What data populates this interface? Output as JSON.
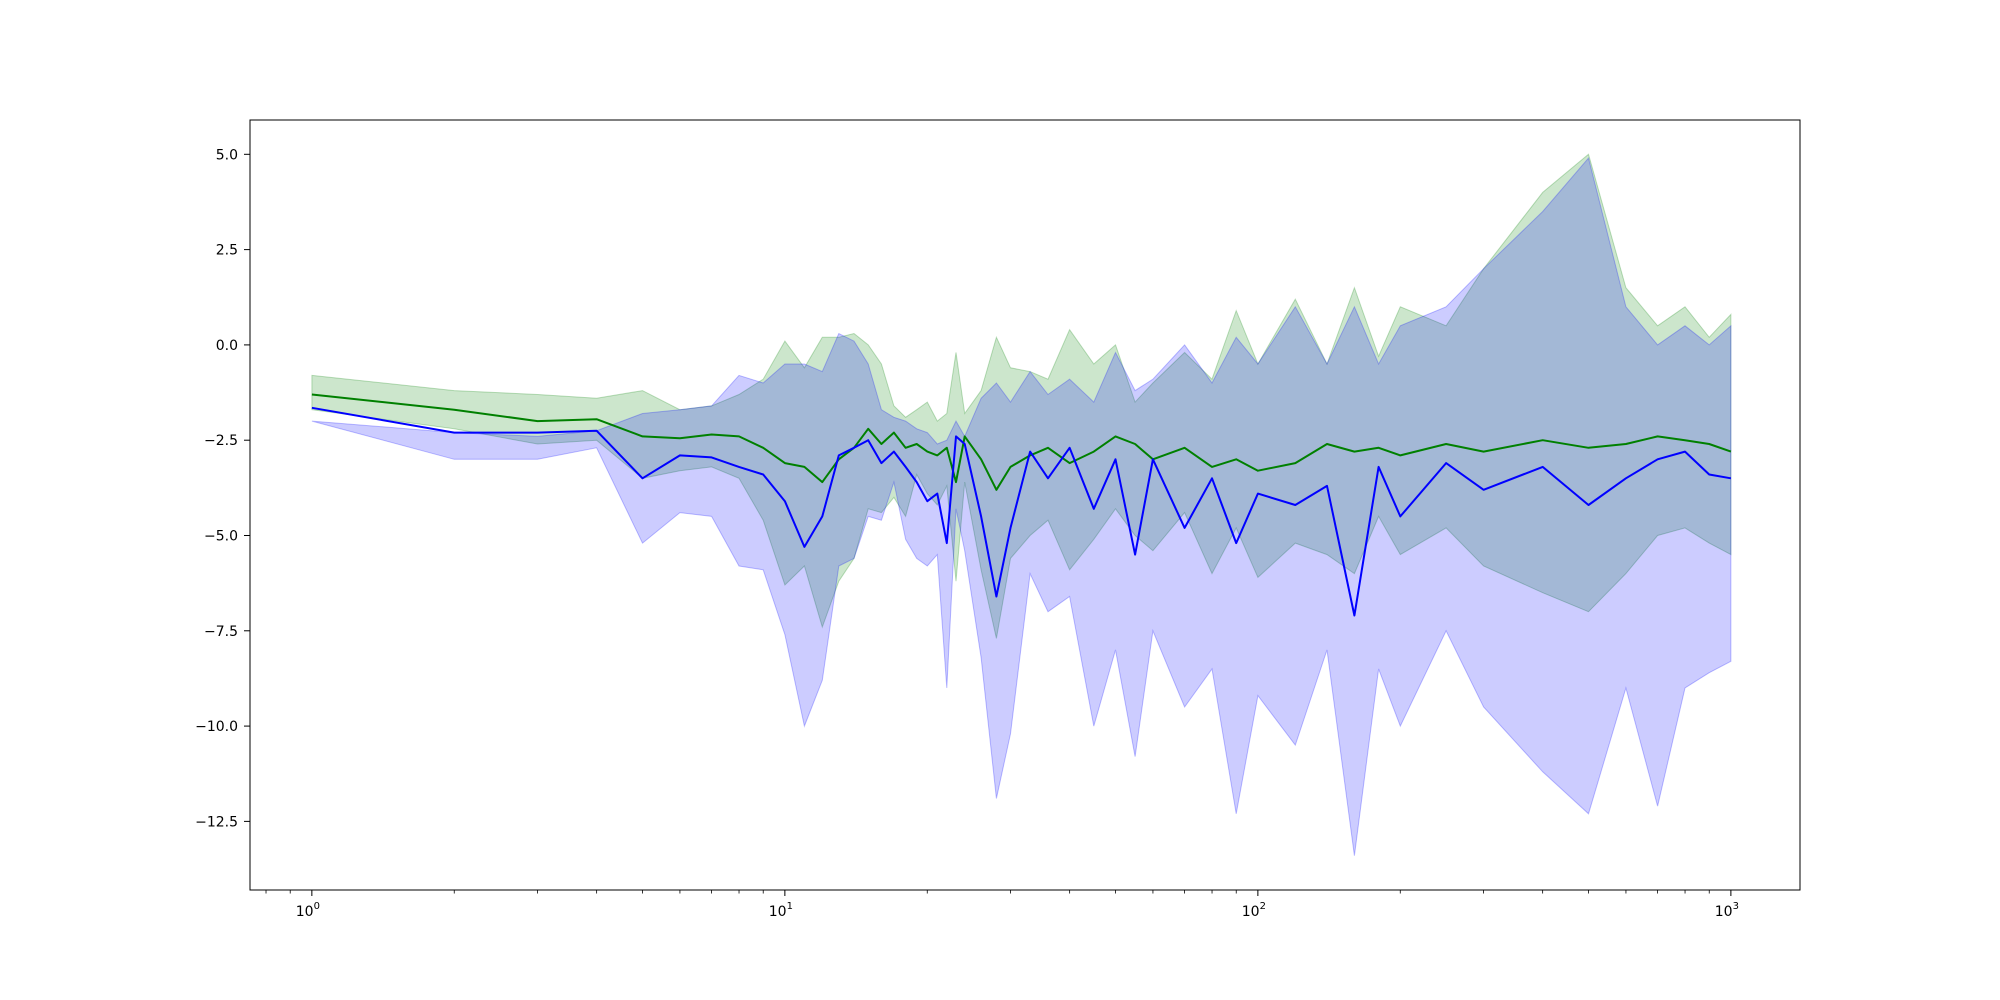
{
  "chart_data": {
    "type": "line",
    "title": "",
    "xlabel": "",
    "ylabel": "",
    "xscale": "log",
    "xlim": [
      0.74,
      1400
    ],
    "ylim": [
      -14.3,
      5.9
    ],
    "grid": false,
    "legend": "none",
    "x_ticks": [
      {
        "value": 1,
        "base": "10",
        "exp": "0"
      },
      {
        "value": 10,
        "base": "10",
        "exp": "1"
      },
      {
        "value": 100,
        "base": "10",
        "exp": "2"
      },
      {
        "value": 1000,
        "base": "10",
        "exp": "3"
      }
    ],
    "y_ticks": [
      {
        "value": 5.0,
        "label": "5.0"
      },
      {
        "value": 2.5,
        "label": "2.5"
      },
      {
        "value": 0.0,
        "label": "0.0"
      },
      {
        "value": -2.5,
        "label": "−2.5"
      },
      {
        "value": -5.0,
        "label": "−5.0"
      },
      {
        "value": -7.5,
        "label": "−7.5"
      },
      {
        "value": -10.0,
        "label": "−10.0"
      },
      {
        "value": -12.5,
        "label": "−12.5"
      }
    ],
    "series": [
      {
        "color": "#008000",
        "band_color": "#008000",
        "band_opacity": 0.2,
        "x": [
          1,
          2,
          3,
          4,
          5,
          6,
          7,
          8,
          9,
          10,
          11,
          12,
          13,
          14,
          15,
          16,
          17,
          18,
          19,
          20,
          21,
          22,
          23,
          24,
          26,
          28,
          30,
          33,
          36,
          40,
          45,
          50,
          55,
          60,
          70,
          80,
          90,
          100,
          120,
          140,
          160,
          180,
          200,
          250,
          300,
          400,
          500,
          600,
          700,
          800,
          900,
          1000
        ],
        "mean": [
          -1.3,
          -1.7,
          -2.0,
          -1.95,
          -2.4,
          -2.45,
          -2.35,
          -2.4,
          -2.7,
          -3.1,
          -3.2,
          -3.6,
          -3.0,
          -2.7,
          -2.2,
          -2.6,
          -2.3,
          -2.7,
          -2.6,
          -2.8,
          -2.9,
          -2.7,
          -3.6,
          -2.4,
          -3.0,
          -3.8,
          -3.2,
          -2.9,
          -2.7,
          -3.1,
          -2.8,
          -2.4,
          -2.6,
          -3.0,
          -2.7,
          -3.2,
          -3.0,
          -3.3,
          -3.1,
          -2.6,
          -2.8,
          -2.7,
          -2.9,
          -2.6,
          -2.8,
          -2.5,
          -2.7,
          -2.6,
          -2.4,
          -2.5,
          -2.6,
          -2.8
        ],
        "upper": [
          -0.8,
          -1.2,
          -1.3,
          -1.4,
          -1.2,
          -1.7,
          -1.6,
          -1.3,
          -0.9,
          0.1,
          -0.6,
          0.2,
          0.2,
          0.3,
          0.0,
          -0.5,
          -1.6,
          -1.9,
          -1.7,
          -1.5,
          -2.0,
          -1.8,
          -0.2,
          -1.8,
          -1.2,
          0.2,
          -0.6,
          -0.7,
          -0.9,
          0.4,
          -0.5,
          0.0,
          -1.5,
          -1.0,
          -0.2,
          -0.9,
          0.9,
          -0.5,
          1.2,
          -0.5,
          1.5,
          -0.3,
          1.0,
          0.5,
          2.0,
          4.0,
          5.0,
          1.5,
          0.5,
          1.0,
          0.2,
          0.8
        ],
        "lower": [
          -1.7,
          -2.2,
          -2.6,
          -2.5,
          -3.5,
          -3.3,
          -3.2,
          -3.5,
          -4.6,
          -6.3,
          -5.8,
          -7.4,
          -6.2,
          -5.6,
          -4.3,
          -4.4,
          -4.0,
          -4.5,
          -3.4,
          -3.9,
          -4.2,
          -3.7,
          -6.2,
          -3.6,
          -5.9,
          -7.7,
          -5.6,
          -5.0,
          -4.6,
          -5.9,
          -5.1,
          -4.3,
          -5.0,
          -5.4,
          -4.4,
          -6.0,
          -4.8,
          -6.1,
          -5.2,
          -5.5,
          -6.0,
          -4.5,
          -5.5,
          -4.8,
          -5.8,
          -6.5,
          -7.0,
          -6.0,
          -5.0,
          -4.8,
          -5.2,
          -5.5
        ]
      },
      {
        "color": "#0000ff",
        "band_color": "#0000ff",
        "band_opacity": 0.2,
        "x": [
          1,
          2,
          3,
          4,
          5,
          6,
          7,
          8,
          9,
          10,
          11,
          12,
          13,
          14,
          15,
          16,
          17,
          18,
          19,
          20,
          21,
          22,
          23,
          24,
          26,
          28,
          30,
          33,
          36,
          40,
          45,
          50,
          55,
          60,
          70,
          80,
          90,
          100,
          120,
          140,
          160,
          180,
          200,
          250,
          300,
          400,
          500,
          600,
          700,
          800,
          900,
          1000
        ],
        "mean": [
          -1.65,
          -2.3,
          -2.3,
          -2.25,
          -3.5,
          -2.9,
          -2.95,
          -3.2,
          -3.4,
          -4.1,
          -5.3,
          -4.5,
          -2.9,
          -2.7,
          -2.5,
          -3.1,
          -2.8,
          -3.2,
          -3.6,
          -4.1,
          -3.9,
          -5.2,
          -2.4,
          -2.6,
          -4.5,
          -6.6,
          -4.8,
          -2.8,
          -3.5,
          -2.7,
          -4.3,
          -3.0,
          -5.5,
          -3.0,
          -4.8,
          -3.5,
          -5.2,
          -3.9,
          -4.2,
          -3.7,
          -7.1,
          -3.2,
          -4.5,
          -3.1,
          -3.8,
          -3.2,
          -4.2,
          -3.5,
          -3.0,
          -2.8,
          -3.4,
          -3.5
        ],
        "upper": [
          -2.0,
          -2.3,
          -2.4,
          -2.25,
          -1.8,
          -1.7,
          -1.6,
          -0.8,
          -1.0,
          -0.5,
          -0.5,
          -0.7,
          0.3,
          0.1,
          -0.5,
          -1.7,
          -1.9,
          -2.0,
          -2.2,
          -2.3,
          -2.6,
          -2.5,
          -2.0,
          -2.4,
          -1.4,
          -1.0,
          -1.5,
          -0.7,
          -1.3,
          -0.9,
          -1.5,
          -0.2,
          -1.2,
          -0.9,
          0.0,
          -1.0,
          0.2,
          -0.5,
          1.0,
          -0.5,
          1.0,
          -0.5,
          0.5,
          1.0,
          2.0,
          3.5,
          4.9,
          1.0,
          0.0,
          0.5,
          0.0,
          0.5
        ],
        "lower": [
          -2.0,
          -3.0,
          -3.0,
          -2.7,
          -5.2,
          -4.4,
          -4.5,
          -5.8,
          -5.9,
          -7.6,
          -10.0,
          -8.8,
          -5.8,
          -5.6,
          -4.5,
          -4.6,
          -3.6,
          -5.1,
          -5.6,
          -5.8,
          -5.5,
          -9.0,
          -4.3,
          -5.4,
          -8.2,
          -11.9,
          -10.2,
          -6.0,
          -7.0,
          -6.6,
          -10.0,
          -8.0,
          -10.8,
          -7.5,
          -9.5,
          -8.5,
          -12.3,
          -9.2,
          -10.5,
          -8.0,
          -13.4,
          -8.5,
          -10.0,
          -7.5,
          -9.5,
          -11.2,
          -12.3,
          -9.0,
          -12.1,
          -9.0,
          -8.6,
          -8.3
        ]
      }
    ]
  }
}
